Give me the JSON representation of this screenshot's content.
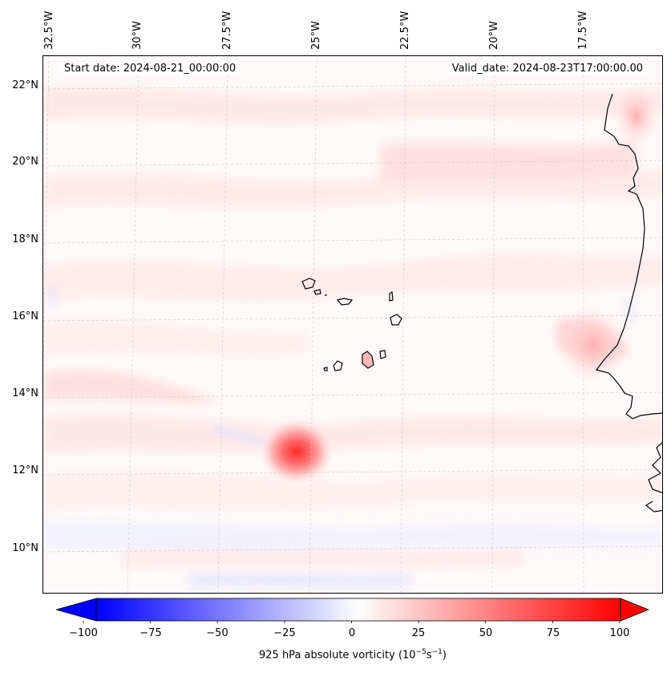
{
  "map": {
    "start_date_text": "Start date: 2024-08-21_00:00:00",
    "valid_date_text": "Valid_date: 2024-08-23T17:00:00.00",
    "longitude_labels": [
      "32.5°W",
      "30°W",
      "27.5°W",
      "25°W",
      "22.5°W",
      "20°W",
      "17.5°W"
    ],
    "latitude_labels": [
      "22°N",
      "20°N",
      "18°N",
      "16°N",
      "14°N",
      "12°N",
      "10°N"
    ],
    "field": "925 hPa absolute vorticity",
    "vortex_center": {
      "lon": -25.0,
      "lat": 12.5
    },
    "colors": {
      "land_coast": "#000000",
      "grid": "#c8c8c8",
      "max_positive": "#ff0000",
      "max_negative": "#0000ff"
    }
  },
  "colorbar": {
    "min": -100,
    "max": 100,
    "ticks": [
      "−100",
      "−75",
      "−50",
      "−25",
      "0",
      "25",
      "50",
      "75",
      "100"
    ],
    "label": "925 hPa absolute vorticity (10",
    "label_exp1": "−5",
    "label_mid": "s",
    "label_exp2": "−1",
    "label_close": ")"
  }
}
